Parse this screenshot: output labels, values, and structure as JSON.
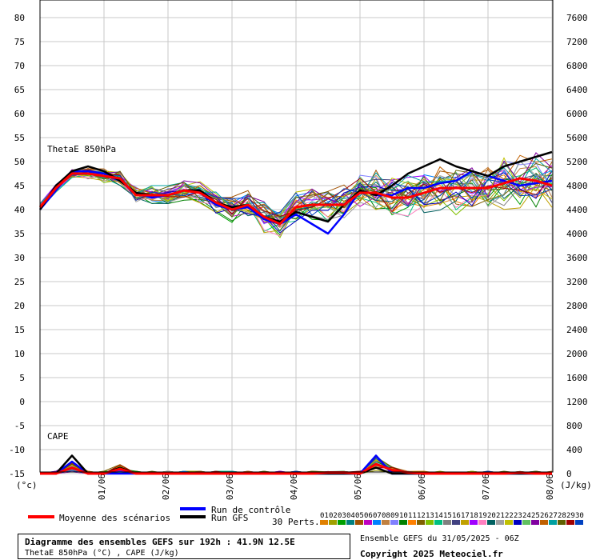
{
  "chart_data": {
    "type": "line",
    "x_ticks": [
      "01/06",
      "02/06",
      "03/06",
      "04/06",
      "05/06",
      "06/06",
      "07/06",
      "08/06"
    ],
    "x_unit": "(°c)",
    "y_left": {
      "ticks": [
        80,
        75,
        70,
        65,
        60,
        55,
        50,
        45,
        40,
        35,
        30,
        25,
        20,
        15,
        10,
        5,
        0,
        -5,
        -10,
        -15
      ],
      "range": [
        -15,
        80
      ]
    },
    "y_right": {
      "ticks": [
        7600,
        7200,
        6800,
        6400,
        6000,
        5600,
        5200,
        4800,
        4400,
        4000,
        3600,
        3200,
        2800,
        2400,
        2000,
        1600,
        1200,
        800,
        400,
        0
      ],
      "unit": "(J/kg)",
      "range": [
        0,
        7600
      ]
    },
    "grid": true,
    "panel_labels": {
      "thetae": "ThetaE 850hPa",
      "cape": "CAPE"
    },
    "series": [
      {
        "name": "Moyenne des scénarios",
        "color": "#ff0000",
        "values": [
          40.5,
          44.5,
          47.5,
          47.5,
          47,
          46.5,
          43,
          43,
          43,
          44,
          43.5,
          41.5,
          40,
          41,
          38.5,
          37,
          40.5,
          41,
          41,
          41,
          43.5,
          43.5,
          42.5,
          42.5,
          43.5,
          44.5,
          44.5,
          44.5,
          44.5,
          45.5,
          46.5,
          46,
          45
        ]
      },
      {
        "name": "Run de contrôle",
        "color": "#0000ff",
        "values": [
          40,
          44,
          48,
          48,
          47.5,
          46,
          43.5,
          42.5,
          43,
          44,
          43.5,
          41,
          40,
          40.5,
          38,
          37,
          39,
          37,
          35,
          39,
          44,
          43,
          43,
          44.5,
          44.5,
          45.5,
          46,
          48,
          47,
          46,
          45,
          45.5,
          46
        ]
      },
      {
        "name": "Run GFS",
        "color": "#000000",
        "values": [
          40,
          45,
          48,
          49,
          48,
          46,
          43.5,
          43,
          43,
          44,
          44,
          41.5,
          40.5,
          41,
          38.5,
          37.5,
          39.5,
          38.5,
          37.5,
          41,
          44,
          43,
          45,
          47.5,
          49,
          50.5,
          49,
          48,
          47,
          49,
          50,
          51,
          52
        ]
      }
    ],
    "cape_series": [
      {
        "name": "Moyenne des scénarios",
        "color": "#ff0000",
        "values": [
          0,
          0,
          100,
          0,
          0,
          80,
          0,
          0,
          0,
          0,
          0,
          0,
          0,
          0,
          0,
          0,
          0,
          0,
          20,
          20,
          0,
          160,
          60,
          20,
          0,
          0,
          0,
          0,
          0,
          0,
          20,
          0,
          0
        ]
      },
      {
        "name": "Run de contrôle",
        "color": "#0000ff",
        "values": [
          0,
          0,
          200,
          0,
          0,
          0,
          0,
          0,
          0,
          0,
          0,
          0,
          0,
          0,
          0,
          0,
          0,
          0,
          0,
          0,
          0,
          300,
          0,
          0,
          0,
          0,
          0,
          0,
          0,
          0,
          0,
          0,
          0
        ]
      },
      {
        "name": "Run GFS",
        "color": "#000000",
        "values": [
          0,
          0,
          300,
          0,
          0,
          100,
          0,
          0,
          0,
          0,
          0,
          0,
          0,
          0,
          0,
          0,
          0,
          0,
          0,
          0,
          0,
          100,
          0,
          0,
          0,
          0,
          0,
          0,
          0,
          0,
          0,
          0,
          0
        ]
      }
    ]
  },
  "legend": {
    "mean_label": "Moyenne des scénarios",
    "control_label": "Run de contrôle",
    "gfs_label": "Run GFS",
    "perts_label": "30 Perts.",
    "pert_numbers": [
      "01",
      "02",
      "03",
      "04",
      "05",
      "06",
      "07",
      "08",
      "09",
      "10",
      "11",
      "12",
      "13",
      "14",
      "15",
      "16",
      "17",
      "18",
      "19",
      "20",
      "21",
      "22",
      "23",
      "24",
      "25",
      "26",
      "27",
      "28",
      "29",
      "30"
    ],
    "pert_colors": [
      "#e08000",
      "#a0a000",
      "#00a000",
      "#008080",
      "#a05000",
      "#c000c0",
      "#0080ff",
      "#c08040",
      "#8080ff",
      "#008000",
      "#ff8000",
      "#806000",
      "#80c000",
      "#00c080",
      "#808080",
      "#404080",
      "#c0a000",
      "#a000ff",
      "#ff80c0",
      "#006060",
      "#a0a0a0",
      "#c0c000",
      "#0000c0",
      "#60c060",
      "#8000a0",
      "#c06000",
      "#00a0a0",
      "#606000",
      "#a00000",
      "#0040c0"
    ]
  },
  "info": {
    "title": "Diagramme des ensembles GEFS sur 192h : 41.9N 12.5E",
    "subtitle": "ThetaE 850hPa (°C) , CAPE (J/kg)",
    "run": "Ensemble GEFS du 31/05/2025 - 06Z",
    "copyright": "Copyright 2025 Meteociel.fr"
  }
}
